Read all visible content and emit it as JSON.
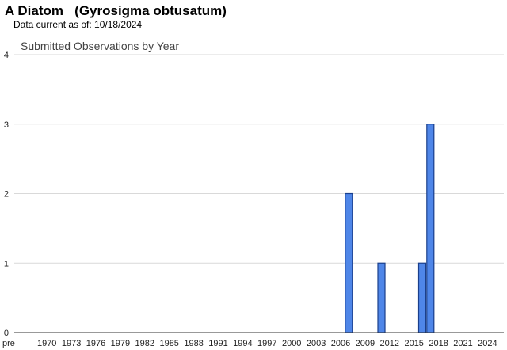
{
  "header": {
    "title": "A Diatom   (Gyrosigma obtusatum)",
    "subtitle": "Data current as of: 10/18/2024"
  },
  "colors": {
    "bar_fill": "#4f86e8",
    "bar_stroke": "#1a3f8c",
    "grid": "#d9d9d9",
    "axis": "#333333"
  },
  "chart_data": {
    "type": "bar",
    "title": "Submitted Observations by Year",
    "xlabel": "",
    "ylabel": "",
    "ylim": [
      0,
      4
    ],
    "yticks": [
      0,
      1,
      2,
      3,
      4
    ],
    "grid": true,
    "x_tick_labels": [
      "pre",
      "1970",
      "1973",
      "1976",
      "1979",
      "1982",
      "1985",
      "1988",
      "1991",
      "1994",
      "1997",
      "2000",
      "2003",
      "2006",
      "2009",
      "2012",
      "2015",
      "2018",
      "2021",
      "2024"
    ],
    "x_tick_years": [
      1966,
      1970,
      1973,
      1976,
      1979,
      1982,
      1985,
      1988,
      1991,
      1994,
      1997,
      2000,
      2003,
      2006,
      2009,
      2012,
      2015,
      2018,
      2021,
      2024
    ],
    "x_range": [
      1966,
      2026
    ],
    "bars": [
      {
        "year": 2007,
        "value": 2
      },
      {
        "year": 2011,
        "value": 1
      },
      {
        "year": 2016,
        "value": 1
      },
      {
        "year": 2017,
        "value": 3
      }
    ]
  }
}
